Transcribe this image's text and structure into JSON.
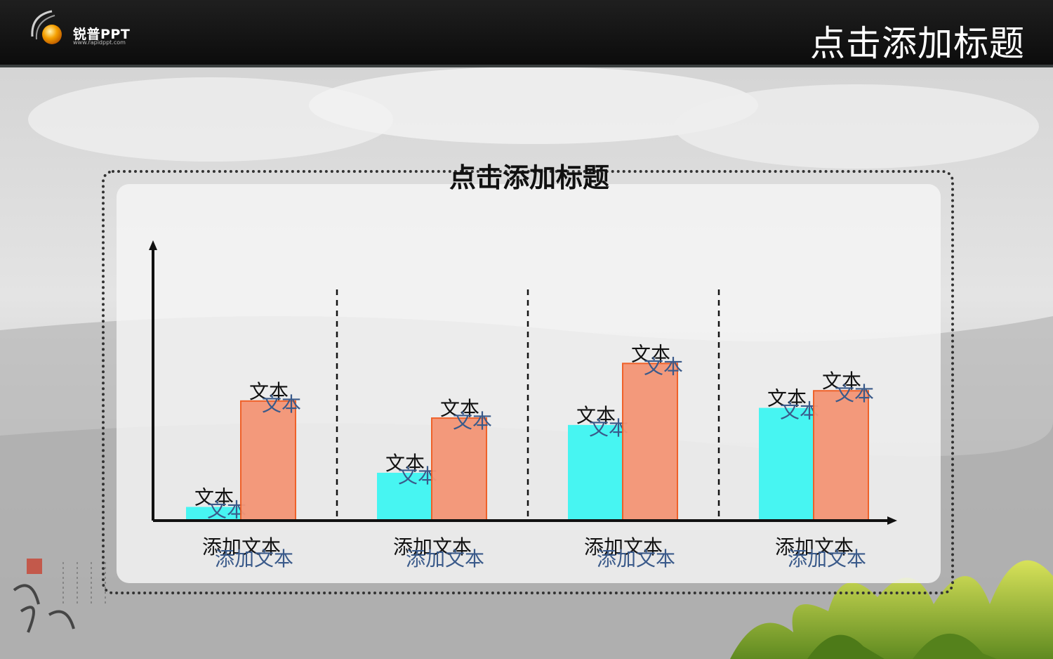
{
  "header": {
    "logo_text": "锐普PPT",
    "logo_url": "www.rapidppt.com",
    "title": "点击添加标题"
  },
  "colors": {
    "series1": "#3ef6f2",
    "series2": "#f49576",
    "series2_stroke": "#f05a1f",
    "label_blue": "#3a5a8a",
    "axis": "#111111"
  },
  "chart_data": {
    "type": "bar",
    "title": "点击添加标题",
    "categories": [
      {
        "label_top": "添加文本",
        "label_bottom": "添加文本"
      },
      {
        "label_top": "添加文本",
        "label_bottom": "添加文本"
      },
      {
        "label_top": "添加文本",
        "label_bottom": "添加文本"
      },
      {
        "label_top": "添加文本",
        "label_bottom": "添加文本"
      }
    ],
    "series": [
      {
        "values": [
          2,
          7,
          14,
          16.5
        ],
        "label_top": "文本",
        "label_bottom": "文本"
      },
      {
        "values": [
          17.5,
          15,
          23,
          19
        ],
        "label_top": "文本",
        "label_bottom": "文本"
      }
    ],
    "ylim": [
      0,
      40
    ],
    "grid": false,
    "legend": "none"
  }
}
